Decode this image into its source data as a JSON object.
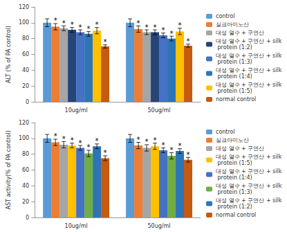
{
  "chart_data": [
    {
      "type": "bar",
      "ylabel": "ALT (% of PA control)",
      "categories": [
        "10ug/ml",
        "50ug/ml"
      ],
      "ylim": [
        0,
        120
      ],
      "yticks": [
        0,
        20,
        40,
        60,
        80,
        100,
        120
      ],
      "grid": false,
      "legend": "right",
      "series": [
        {
          "name": "control",
          "color": "#5b9bd5",
          "values": [
            100,
            100
          ],
          "errors": [
            5,
            5
          ],
          "annotations": [
            null,
            null
          ]
        },
        {
          "name": "실크아미노산",
          "color": "#ed7d31",
          "values": [
            95,
            92
          ],
          "errors": [
            4,
            4
          ],
          "annotations": [
            "*",
            "*"
          ]
        },
        {
          "name": "대성 열수 + 구연산",
          "color": "#a5a5a5",
          "values": [
            93,
            88
          ],
          "errors": [
            3,
            3
          ],
          "annotations": [
            "*",
            "*"
          ]
        },
        {
          "name": "대성 열수 + 구연산 + silk protein (1:2)",
          "color": "#264478",
          "values": [
            91,
            88
          ],
          "errors": [
            3,
            3
          ],
          "annotations": [
            "*",
            "*"
          ]
        },
        {
          "name": "대성 열수 + 구연산 + silk protein (1:3)",
          "color": "#4472c4",
          "values": [
            88,
            84
          ],
          "errors": [
            3,
            3
          ],
          "annotations": [
            "*",
            "*"
          ]
        },
        {
          "name": "대성 열수 + 구연산 + silk protein (1:4)",
          "color": "#2e75b6",
          "values": [
            86,
            80
          ],
          "errors": [
            3,
            3
          ],
          "annotations": [
            "*",
            "*"
          ]
        },
        {
          "name": "대성 열수 + 구연산 + silk protein (1:5)",
          "color": "#ffc000",
          "values": [
            90,
            89
          ],
          "errors": [
            4,
            4
          ],
          "annotations": [
            "*",
            "*"
          ]
        },
        {
          "name": "normal control",
          "color": "#c55a11",
          "values": [
            70,
            71
          ],
          "errors": [
            2,
            2
          ],
          "annotations": [
            "*",
            "*"
          ]
        }
      ]
    },
    {
      "type": "bar",
      "ylabel": "AST activity(% of PA control)",
      "categories": [
        "10ug/ml",
        "50ug/ml"
      ],
      "ylim": [
        0,
        120
      ],
      "yticks": [
        0,
        20,
        40,
        60,
        80,
        100,
        120
      ],
      "grid": false,
      "legend": "right",
      "series": [
        {
          "name": "control",
          "color": "#5b9bd5",
          "values": [
            100,
            100
          ],
          "errors": [
            5,
            5
          ],
          "annotations": [
            null,
            null
          ]
        },
        {
          "name": "실크아미노산",
          "color": "#ed7d31",
          "values": [
            95,
            91
          ],
          "errors": [
            4,
            4
          ],
          "annotations": [
            "*",
            "*"
          ]
        },
        {
          "name": "대성 열수 + 구연산",
          "color": "#a5a5a5",
          "values": [
            92,
            88
          ],
          "errors": [
            4,
            4
          ],
          "annotations": [
            "*",
            "*"
          ]
        },
        {
          "name": "대성 열수 + 구연산 + silk protein (1:5)",
          "color": "#ffc000",
          "values": [
            91,
            90
          ],
          "errors": [
            3,
            4
          ],
          "annotations": [
            "*",
            "*"
          ]
        },
        {
          "name": "대성 열수 + 구연산 + silk protein (1:4)",
          "color": "#4472c4",
          "values": [
            88,
            85
          ],
          "errors": [
            3,
            3
          ],
          "annotations": [
            "*",
            "*"
          ]
        },
        {
          "name": "대성 열수 + 구연산 + silk protein (1:3)",
          "color": "#70ad47",
          "values": [
            81,
            78
          ],
          "errors": [
            4,
            4
          ],
          "annotations": [
            "*",
            "*"
          ]
        },
        {
          "name": "대성 열수 + 구연산 + silk protein (1:2)",
          "color": "#2e75b6",
          "values": [
            90,
            84
          ],
          "errors": [
            3,
            3
          ],
          "annotations": [
            "*",
            "*"
          ]
        },
        {
          "name": "normal control",
          "color": "#c55a11",
          "values": [
            75,
            73
          ],
          "errors": [
            3,
            3
          ],
          "annotations": [
            "*",
            "*"
          ]
        }
      ]
    }
  ]
}
